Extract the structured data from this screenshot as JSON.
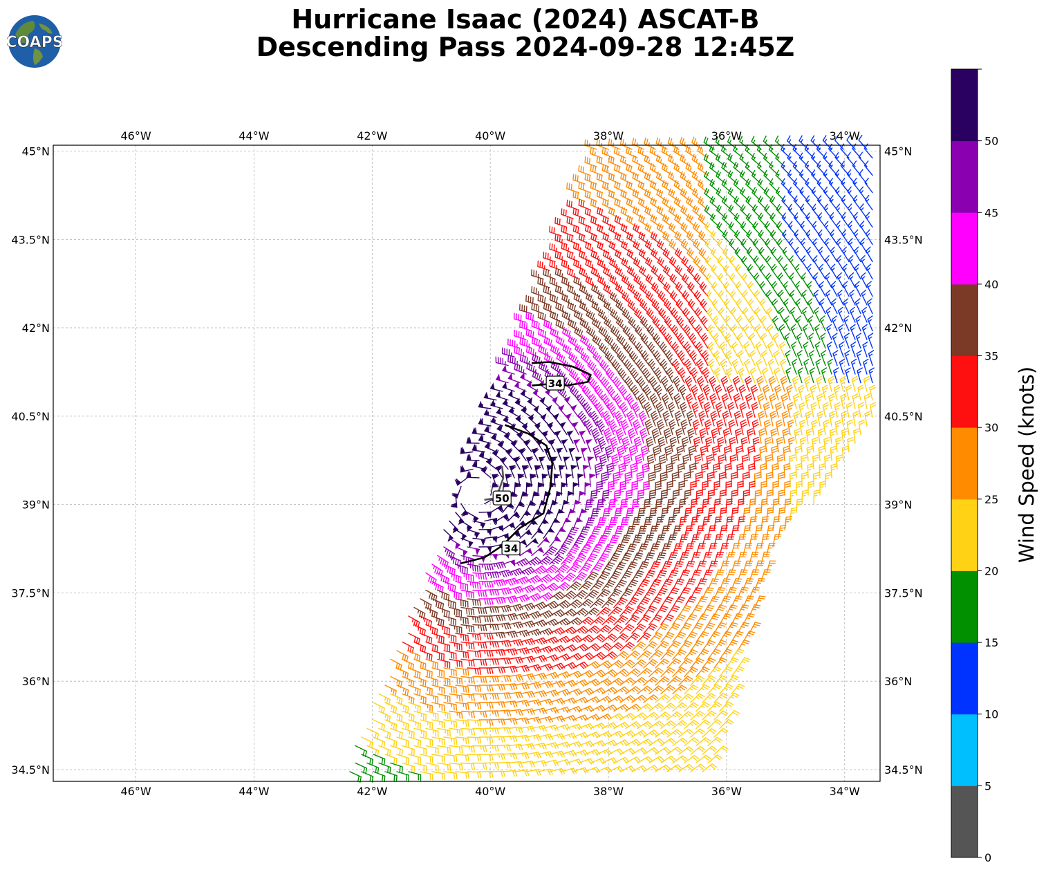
{
  "header": {
    "logo_text": "COAPS",
    "title_line1": "Hurricane Isaac (2024) ASCAT-B",
    "title_line2": "Descending Pass 2024-09-28 12:45Z"
  },
  "map": {
    "lon_range": [
      -47.4,
      -33.4
    ],
    "lat_range": [
      34.3,
      45.1
    ],
    "lon_ticks": [
      {
        "value": -46,
        "label": "46°W"
      },
      {
        "value": -44,
        "label": "44°W"
      },
      {
        "value": -42,
        "label": "42°W"
      },
      {
        "value": -40,
        "label": "40°W"
      },
      {
        "value": -38,
        "label": "38°W"
      },
      {
        "value": -36,
        "label": "36°W"
      },
      {
        "value": -34,
        "label": "34°W"
      }
    ],
    "lat_ticks": [
      {
        "value": 45,
        "label": "45°N"
      },
      {
        "value": 43.5,
        "label": "43.5°N"
      },
      {
        "value": 42,
        "label": "42°N"
      },
      {
        "value": 40.5,
        "label": "40.5°N"
      },
      {
        "value": 39,
        "label": "39°N"
      },
      {
        "value": 37.5,
        "label": "37.5°N"
      },
      {
        "value": 36,
        "label": "36°N"
      },
      {
        "value": 34.5,
        "label": "34.5°N"
      }
    ],
    "gridlines": true,
    "storm_center": {
      "lon": -40.2,
      "lat": 39.2
    },
    "contours": [
      {
        "level": "34",
        "label_at": {
          "lon": -38.9,
          "lat": 41.05
        },
        "points": [
          [
            -39.3,
            41.4
          ],
          [
            -39.0,
            41.42
          ],
          [
            -38.6,
            41.34
          ],
          [
            -38.3,
            41.2
          ],
          [
            -38.35,
            41.08
          ],
          [
            -38.7,
            41.02
          ],
          [
            -38.95,
            41.05
          ],
          [
            -39.3,
            41.02
          ]
        ]
      },
      {
        "level": "34",
        "label_at": {
          "lon": -39.65,
          "lat": 38.25
        },
        "points": [
          [
            -39.75,
            40.35
          ],
          [
            -39.35,
            40.2
          ],
          [
            -39.05,
            40.0
          ],
          [
            -38.95,
            39.7
          ],
          [
            -38.98,
            39.3
          ],
          [
            -39.1,
            38.85
          ],
          [
            -39.5,
            38.6
          ],
          [
            -39.8,
            38.3
          ],
          [
            -40.1,
            38.1
          ],
          [
            -40.5,
            38.0
          ]
        ]
      },
      {
        "level": "50",
        "label_at": {
          "lon": -39.8,
          "lat": 39.1
        },
        "points": [
          [
            -39.8,
            39.65
          ],
          [
            -39.78,
            39.45
          ],
          [
            -39.85,
            39.25
          ],
          [
            -39.95,
            39.1
          ],
          [
            -40.1,
            39.08
          ]
        ]
      }
    ]
  },
  "colorbar": {
    "label": "Wind Speed (knots)",
    "ticks": [
      "0",
      "5",
      "10",
      "15",
      "20",
      "25",
      "30",
      "35",
      "40",
      "45",
      "50"
    ],
    "colors": [
      "#555555",
      "#00bfff",
      "#0033ff",
      "#009000",
      "#ffd215",
      "#ff8c00",
      "#ff1010",
      "#7b3a26",
      "#ff00ff",
      "#8a00b0",
      "#2a0060"
    ]
  }
}
